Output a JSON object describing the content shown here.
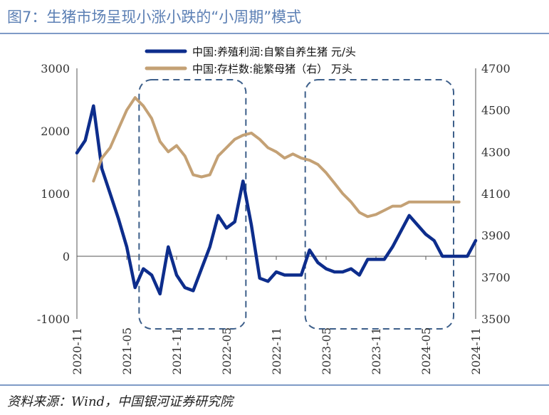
{
  "title": "图7：生猪市场呈现小涨小跌的“小周期”模式",
  "source": "资料来源：Wind，中国银河证券研究院",
  "chart_data": {
    "type": "line",
    "series": [
      {
        "name": "中国:养殖利润:自繁自养生猪  元/头",
        "axis": "left",
        "color": "#0d2d8c",
        "x": [
          "2020-11",
          "2020-12",
          "2021-01",
          "2021-02",
          "2021-03",
          "2021-04",
          "2021-05",
          "2021-06",
          "2021-07",
          "2021-08",
          "2021-09",
          "2021-10",
          "2021-11",
          "2021-12",
          "2022-01",
          "2022-02",
          "2022-03",
          "2022-04",
          "2022-05",
          "2022-06",
          "2022-07",
          "2022-08",
          "2022-09",
          "2022-10",
          "2022-11",
          "2022-12",
          "2023-01",
          "2023-02",
          "2023-03",
          "2023-04",
          "2023-05",
          "2023-06",
          "2023-07",
          "2023-08",
          "2023-09",
          "2023-10",
          "2023-11",
          "2023-12",
          "2024-01",
          "2024-02",
          "2024-03",
          "2024-04",
          "2024-05",
          "2024-06",
          "2024-07",
          "2024-08",
          "2024-09",
          "2024-10",
          "2024-11"
        ],
        "values": [
          1650,
          1850,
          2400,
          1400,
          1000,
          600,
          150,
          -500,
          -200,
          -300,
          -600,
          150,
          -300,
          -500,
          -550,
          -200,
          150,
          650,
          450,
          550,
          1200,
          500,
          -350,
          -400,
          -250,
          -300,
          -300,
          -300,
          100,
          -100,
          -200,
          -250,
          -250,
          -200,
          -300,
          -50,
          -50,
          -50,
          150,
          400,
          650,
          500,
          350,
          250,
          0,
          0,
          0,
          0,
          250
        ],
        "note_end_month": "2024-10"
      },
      {
        "name": "中国:存栏数:能繁母猪（右）  万头",
        "axis": "right",
        "color": "#c4a175",
        "x": [
          "2021-01",
          "2021-02",
          "2021-03",
          "2021-04",
          "2021-05",
          "2021-06",
          "2021-07",
          "2021-08",
          "2021-09",
          "2021-10",
          "2021-11",
          "2021-12",
          "2022-01",
          "2022-02",
          "2022-03",
          "2022-04",
          "2022-05",
          "2022-06",
          "2022-07",
          "2022-08",
          "2022-09",
          "2022-10",
          "2022-11",
          "2022-12",
          "2023-01",
          "2023-02",
          "2023-03",
          "2023-04",
          "2023-05",
          "2023-06",
          "2023-07",
          "2023-08",
          "2023-09",
          "2023-10",
          "2023-11",
          "2023-12",
          "2024-01",
          "2024-02",
          "2024-03",
          "2024-04",
          "2024-05",
          "2024-06",
          "2024-07",
          "2024-08",
          "2024-09"
        ],
        "values": [
          4160,
          4270,
          4320,
          4410,
          4500,
          4560,
          4520,
          4460,
          4350,
          4300,
          4330,
          4280,
          4190,
          4180,
          4190,
          4280,
          4320,
          4360,
          4380,
          4390,
          4360,
          4320,
          4300,
          4270,
          4290,
          4270,
          4260,
          4240,
          4200,
          4150,
          4100,
          4060,
          4010,
          3990,
          4000,
          4020,
          4040,
          4040,
          4060,
          4060,
          4060,
          4060,
          4060,
          4060,
          4060
        ]
      }
    ],
    "x_ticks": [
      "2020-11",
      "2021-05",
      "2021-11",
      "2022-05",
      "2022-11",
      "2023-05",
      "2023-11",
      "2024-05",
      "2024-11"
    ],
    "y_left": {
      "ticks": [
        "3000",
        "2000",
        "1000",
        "0",
        "-1000"
      ],
      "range": [
        -1000,
        3000
      ]
    },
    "y_right": {
      "ticks": [
        "4700",
        "4500",
        "4300",
        "4100",
        "3900",
        "3700",
        "3500"
      ],
      "range": [
        3500,
        4700
      ]
    },
    "highlight_boxes": [
      {
        "from": "2021-07",
        "to": "2022-07"
      },
      {
        "from": "2023-03",
        "to": "2024-08"
      }
    ],
    "legend_position": "top-center",
    "grid": false
  }
}
